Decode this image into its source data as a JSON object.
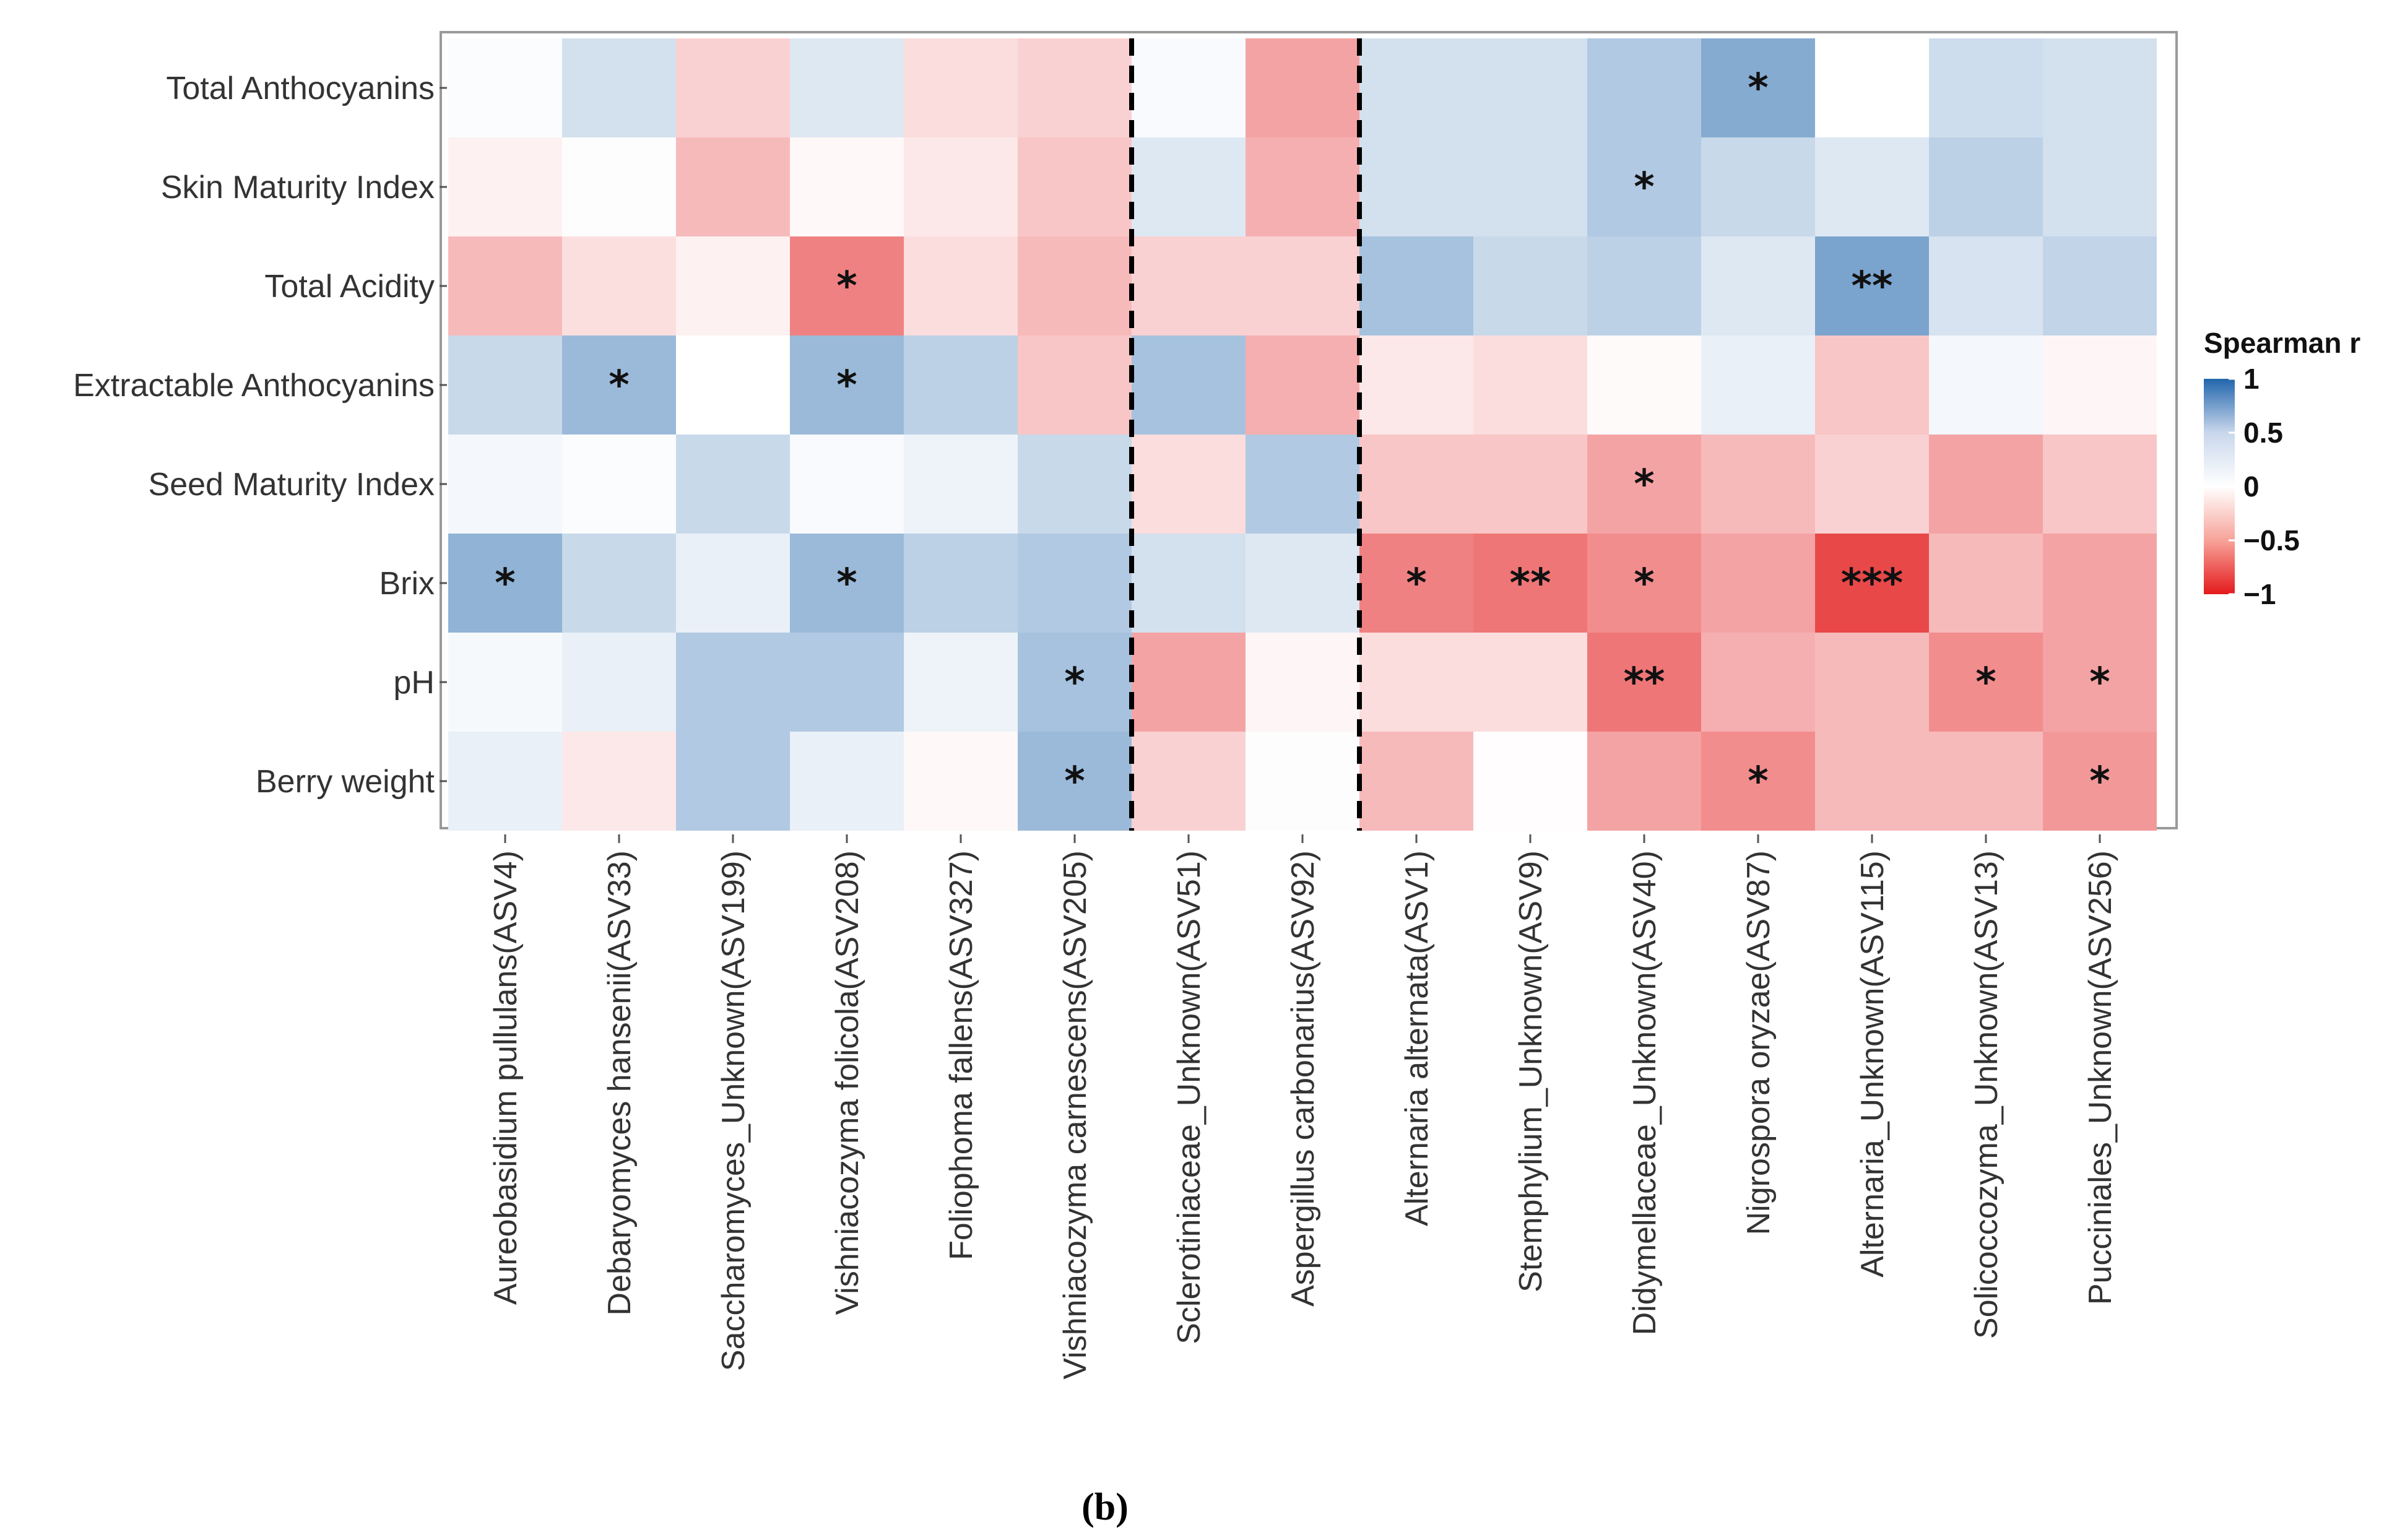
{
  "chart_data": {
    "type": "heatmap",
    "rows": [
      "Total Anthocyanins",
      "Skin Maturity Index",
      "Total Acidity",
      "Extractable Anthocyanins",
      "Seed Maturity Index",
      "Brix",
      "pH",
      "Berry weight"
    ],
    "columns": [
      "Aureobasidium pullulans(ASV4)",
      "Debaryomyces hansenii(ASV33)",
      "Saccharomyces_Unknown(ASV199)",
      "Vishniacozyma folicola(ASV208)",
      "Foliophoma fallens(ASV327)",
      "Vishniacozyma carnescens(ASV205)",
      "Sclerotiniaceae_Unknown(ASV51)",
      "Aspergillus carbonarius(ASV92)",
      "Alternaria alternata(ASV1)",
      "Stemphylium_Unknown(ASV9)",
      "Didymellaceae_Unknown(ASV40)",
      "Nigrospora oryzae(ASV87)",
      "Alternaria_Unknown(ASV115)",
      "Solicoccozyma_Unknown(ASV13)",
      "Pucciniales_Unknown(ASV256)"
    ],
    "values": [
      [
        0.02,
        0.2,
        -0.2,
        0.15,
        -0.15,
        -0.2,
        0.03,
        -0.4,
        0.2,
        0.2,
        0.35,
        0.55,
        0.0,
        0.22,
        0.2
      ],
      [
        -0.06,
        0.01,
        -0.3,
        -0.03,
        -0.1,
        -0.25,
        0.15,
        -0.35,
        0.2,
        0.2,
        0.35,
        0.25,
        0.15,
        0.3,
        0.2
      ],
      [
        -0.3,
        -0.14,
        -0.06,
        -0.55,
        -0.15,
        -0.3,
        -0.2,
        -0.2,
        0.4,
        0.25,
        0.3,
        0.15,
        0.6,
        0.18,
        0.28
      ],
      [
        0.25,
        0.45,
        0.0,
        0.45,
        0.3,
        -0.25,
        0.4,
        -0.35,
        -0.1,
        -0.15,
        -0.02,
        0.1,
        -0.25,
        0.05,
        -0.04
      ],
      [
        0.05,
        0.02,
        0.25,
        0.03,
        0.08,
        0.25,
        -0.15,
        0.35,
        -0.25,
        -0.25,
        -0.4,
        -0.3,
        -0.2,
        -0.4,
        -0.25
      ],
      [
        0.5,
        0.25,
        0.1,
        0.45,
        0.3,
        0.35,
        0.2,
        0.15,
        -0.55,
        -0.6,
        -0.5,
        -0.4,
        -0.8,
        -0.3,
        -0.4
      ],
      [
        0.04,
        0.1,
        0.35,
        0.35,
        0.08,
        0.4,
        -0.4,
        -0.04,
        -0.15,
        -0.15,
        -0.6,
        -0.35,
        -0.3,
        -0.5,
        -0.4
      ],
      [
        0.1,
        -0.1,
        0.35,
        0.1,
        -0.03,
        0.45,
        -0.2,
        0.01,
        -0.3,
        -0.01,
        -0.4,
        -0.5,
        -0.3,
        -0.3,
        -0.45
      ]
    ],
    "significance": [
      [
        "",
        "",
        "",
        "",
        "",
        "",
        "",
        "",
        "",
        "",
        "",
        "*",
        "",
        "",
        ""
      ],
      [
        "",
        "",
        "",
        "",
        "",
        "",
        "",
        "",
        "",
        "",
        "*",
        "",
        "",
        "",
        ""
      ],
      [
        "",
        "",
        "",
        "*",
        "",
        "",
        "",
        "",
        "",
        "",
        "",
        "",
        "**",
        "",
        ""
      ],
      [
        "",
        "*",
        "",
        "*",
        "",
        "",
        "",
        "",
        "",
        "",
        "",
        "",
        "",
        "",
        ""
      ],
      [
        "",
        "",
        "",
        "",
        "",
        "",
        "",
        "",
        "",
        "",
        "*",
        "",
        "",
        "",
        ""
      ],
      [
        "*",
        "",
        "",
        "*",
        "",
        "",
        "",
        "",
        "*",
        "**",
        "*",
        "",
        "***",
        "",
        ""
      ],
      [
        "",
        "",
        "",
        "",
        "",
        "*",
        "",
        "",
        "",
        "",
        "**",
        "",
        "",
        "*",
        "*"
      ],
      [
        "",
        "",
        "",
        "",
        "",
        "*",
        "",
        "",
        "",
        "",
        "",
        "*",
        "",
        "",
        "*"
      ]
    ],
    "group_dividers_after_column": [
      6,
      8
    ],
    "legend": {
      "title": "Spearman r",
      "ticks": [
        "1",
        "0.5",
        "0",
        "−0.5",
        "−1"
      ],
      "tick_values": [
        1,
        0.5,
        0,
        -0.5,
        -1
      ],
      "range": [
        -1,
        1
      ]
    },
    "colors": {
      "positive": "#2166ac",
      "neutral": "#ffffff",
      "negative": "#e41a1c"
    },
    "xlabel": "",
    "ylabel": "",
    "grid": false
  },
  "caption": "(b)"
}
